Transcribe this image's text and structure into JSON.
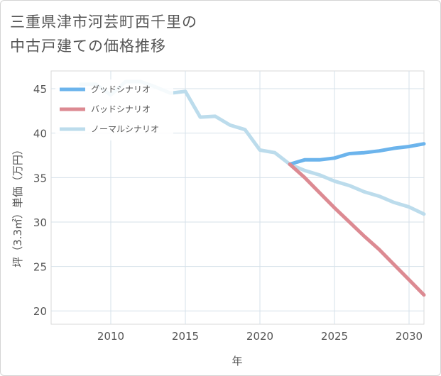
{
  "title_lines": [
    "三重県津市河芸町西千里の",
    "中古戸建ての価格推移"
  ],
  "chart_data": {
    "type": "line",
    "title": "三重県津市河芸町西千里の中古戸建ての価格推移",
    "xlabel": "年",
    "ylabel": "坪（3.3㎡）単価（万円）",
    "xlim": [
      2006,
      2031
    ],
    "ylim": [
      18.5,
      47
    ],
    "xticks": [
      2010,
      2015,
      2020,
      2025,
      2030
    ],
    "yticks": [
      20,
      25,
      30,
      35,
      40,
      45
    ],
    "grid": true,
    "legend_position": "top-left",
    "series": [
      {
        "name": "グッドシナリオ",
        "color": "#6cb4ec",
        "x": [
          2022,
          2023,
          2024,
          2025,
          2026,
          2027,
          2028,
          2029,
          2030,
          2031
        ],
        "values": [
          36.5,
          37.0,
          37.0,
          37.2,
          37.7,
          37.8,
          38.0,
          38.3,
          38.5,
          38.8
        ]
      },
      {
        "name": "バッドシナリオ",
        "color": "#dc8a92",
        "x": [
          2022,
          2023,
          2024,
          2025,
          2026,
          2027,
          2028,
          2029,
          2030,
          2031
        ],
        "values": [
          36.5,
          35.0,
          33.3,
          31.6,
          30.0,
          28.4,
          26.9,
          25.2,
          23.5,
          21.8
        ]
      },
      {
        "name": "ノーマルシナリオ",
        "color": "#bcdcec",
        "x": [
          2008,
          2009,
          2010,
          2011,
          2012,
          2013,
          2014,
          2015,
          2016,
          2017,
          2018,
          2019,
          2020,
          2021,
          2022,
          2023,
          2024,
          2025,
          2026,
          2027,
          2028,
          2029,
          2030,
          2031
        ],
        "values": [
          45.5,
          45.5,
          44.3,
          45.8,
          45.8,
          45.2,
          44.5,
          44.7,
          41.8,
          41.9,
          40.9,
          40.4,
          38.1,
          37.8,
          36.5,
          35.8,
          35.3,
          34.6,
          34.1,
          33.4,
          32.9,
          32.2,
          31.7,
          30.9
        ]
      }
    ]
  }
}
